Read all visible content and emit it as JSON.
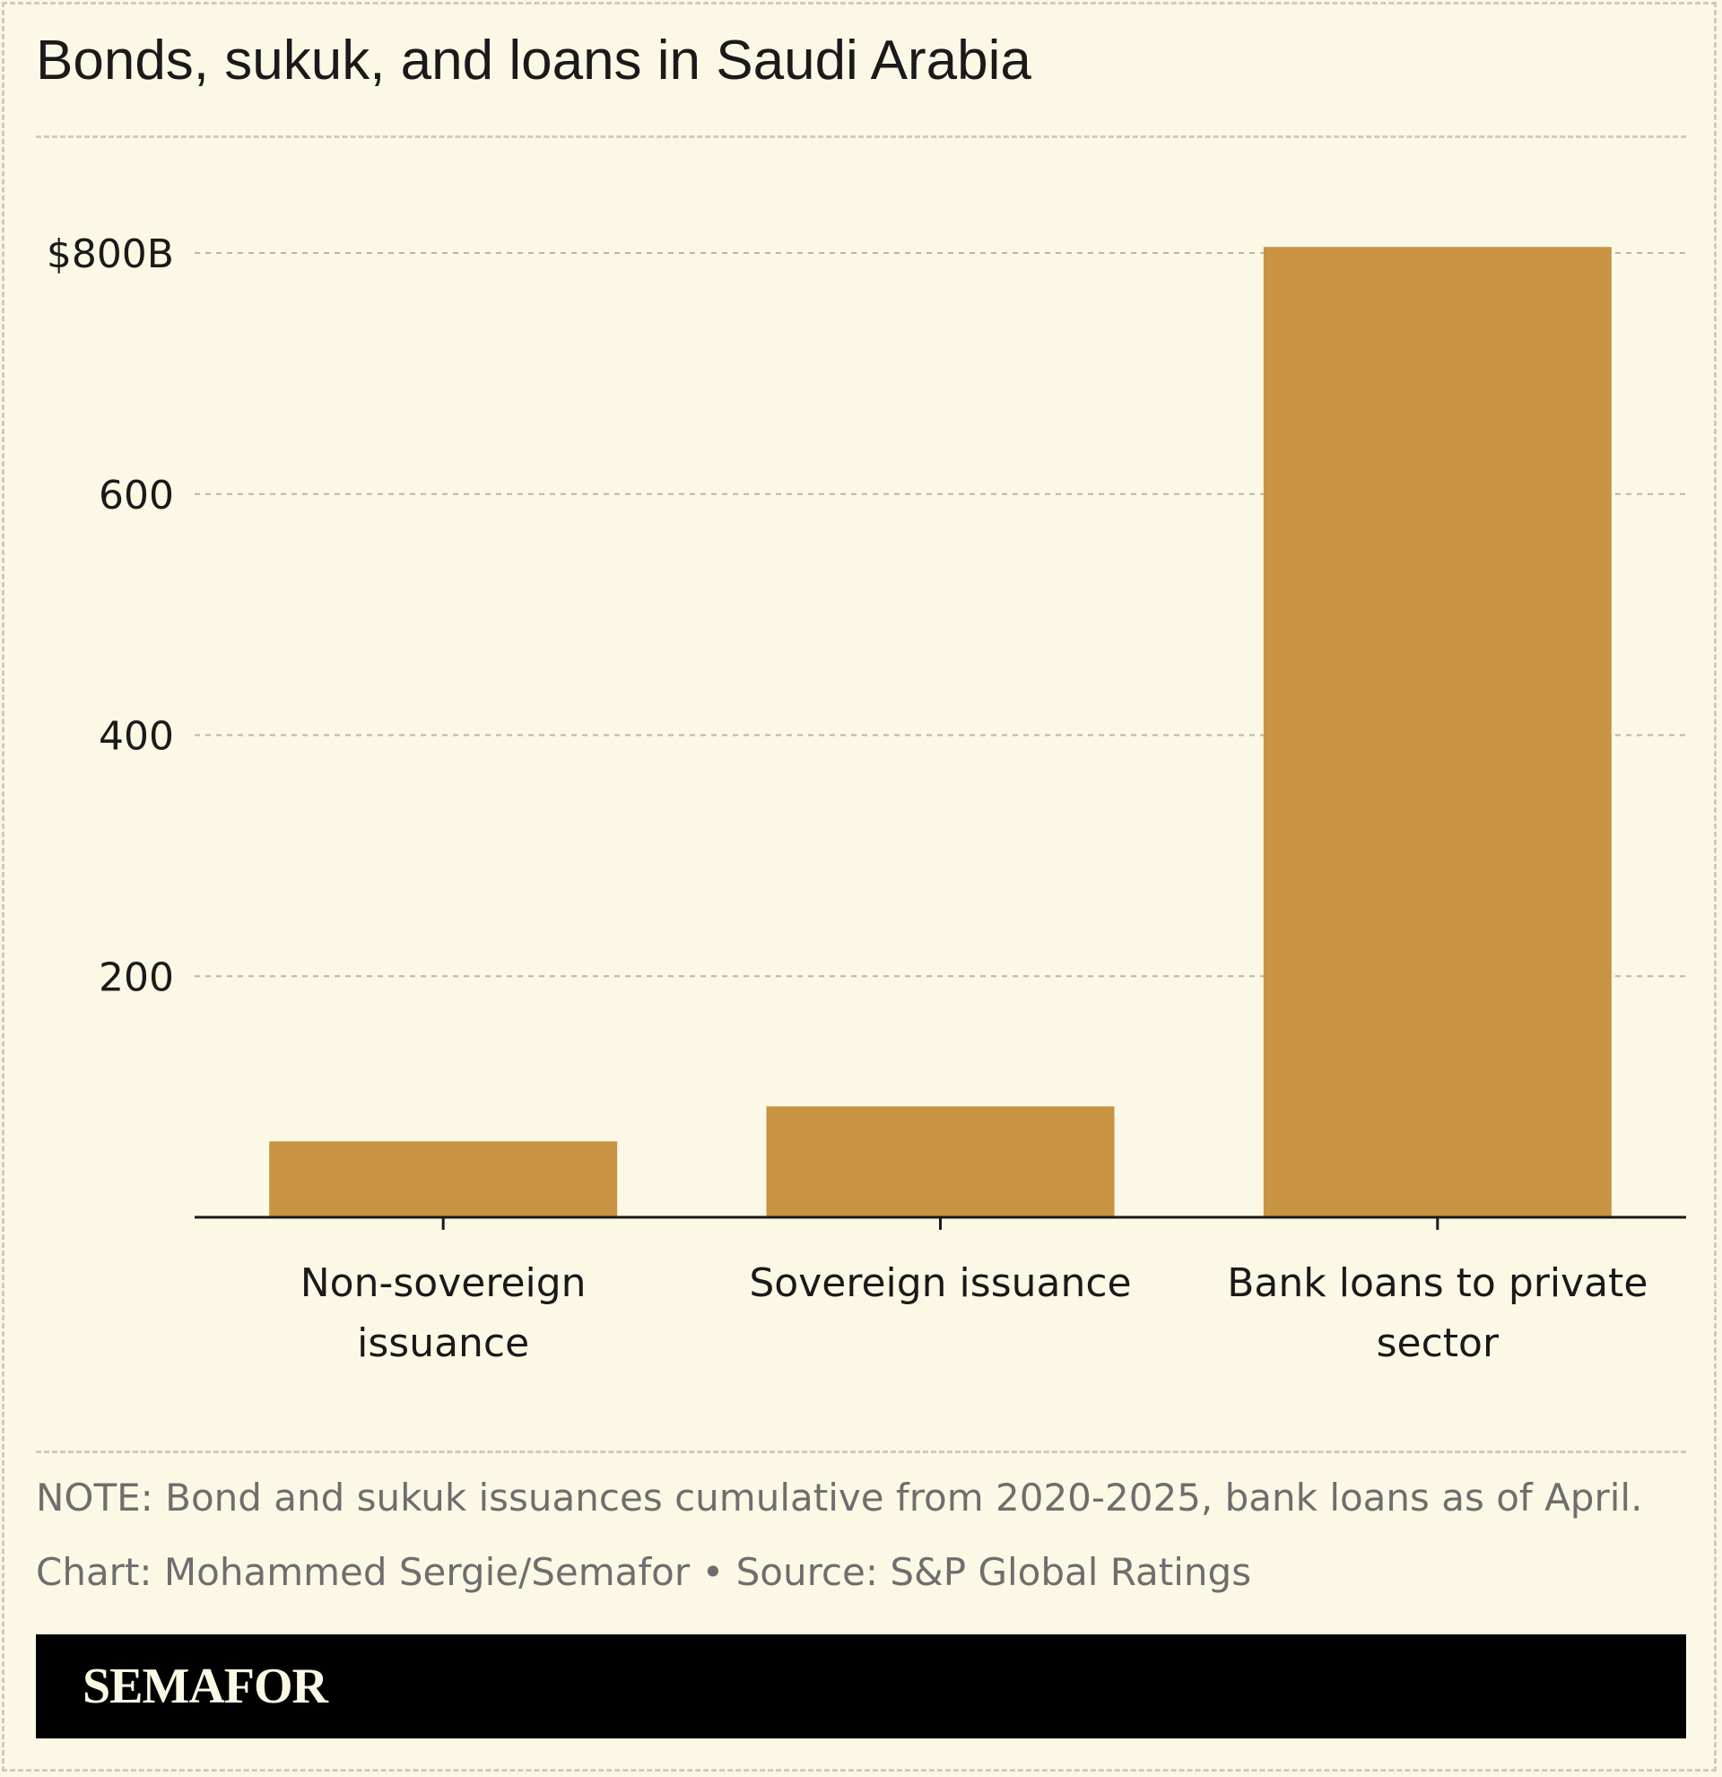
{
  "title": "Bonds, sukuk, and loans in Saudi Arabia",
  "chart_data": {
    "type": "bar",
    "categories": [
      "Non-sovereign issuance",
      "Sovereign issuance",
      "Bank loans to private sector"
    ],
    "category_lines": [
      [
        "Non-sovereign",
        "issuance"
      ],
      [
        "Sovereign issuance"
      ],
      [
        "Bank loans to private",
        "sector"
      ]
    ],
    "values": [
      63,
      92,
      805
    ],
    "ylim": [
      0,
      800
    ],
    "yticks": [
      200,
      400,
      600,
      800
    ],
    "ytick_labels": [
      "200",
      "400",
      "600",
      "$800B"
    ],
    "grid": true,
    "bar_color": "#c89443"
  },
  "notes": {
    "note": "NOTE: Bond and sukuk issuances cumulative from 2020-2025, bank loans as of April.",
    "credit": "Chart: Mohammed Sergie/Semafor • Source: S&P Global Ratings"
  },
  "brand": {
    "logo_text": "SEMAFOR"
  }
}
